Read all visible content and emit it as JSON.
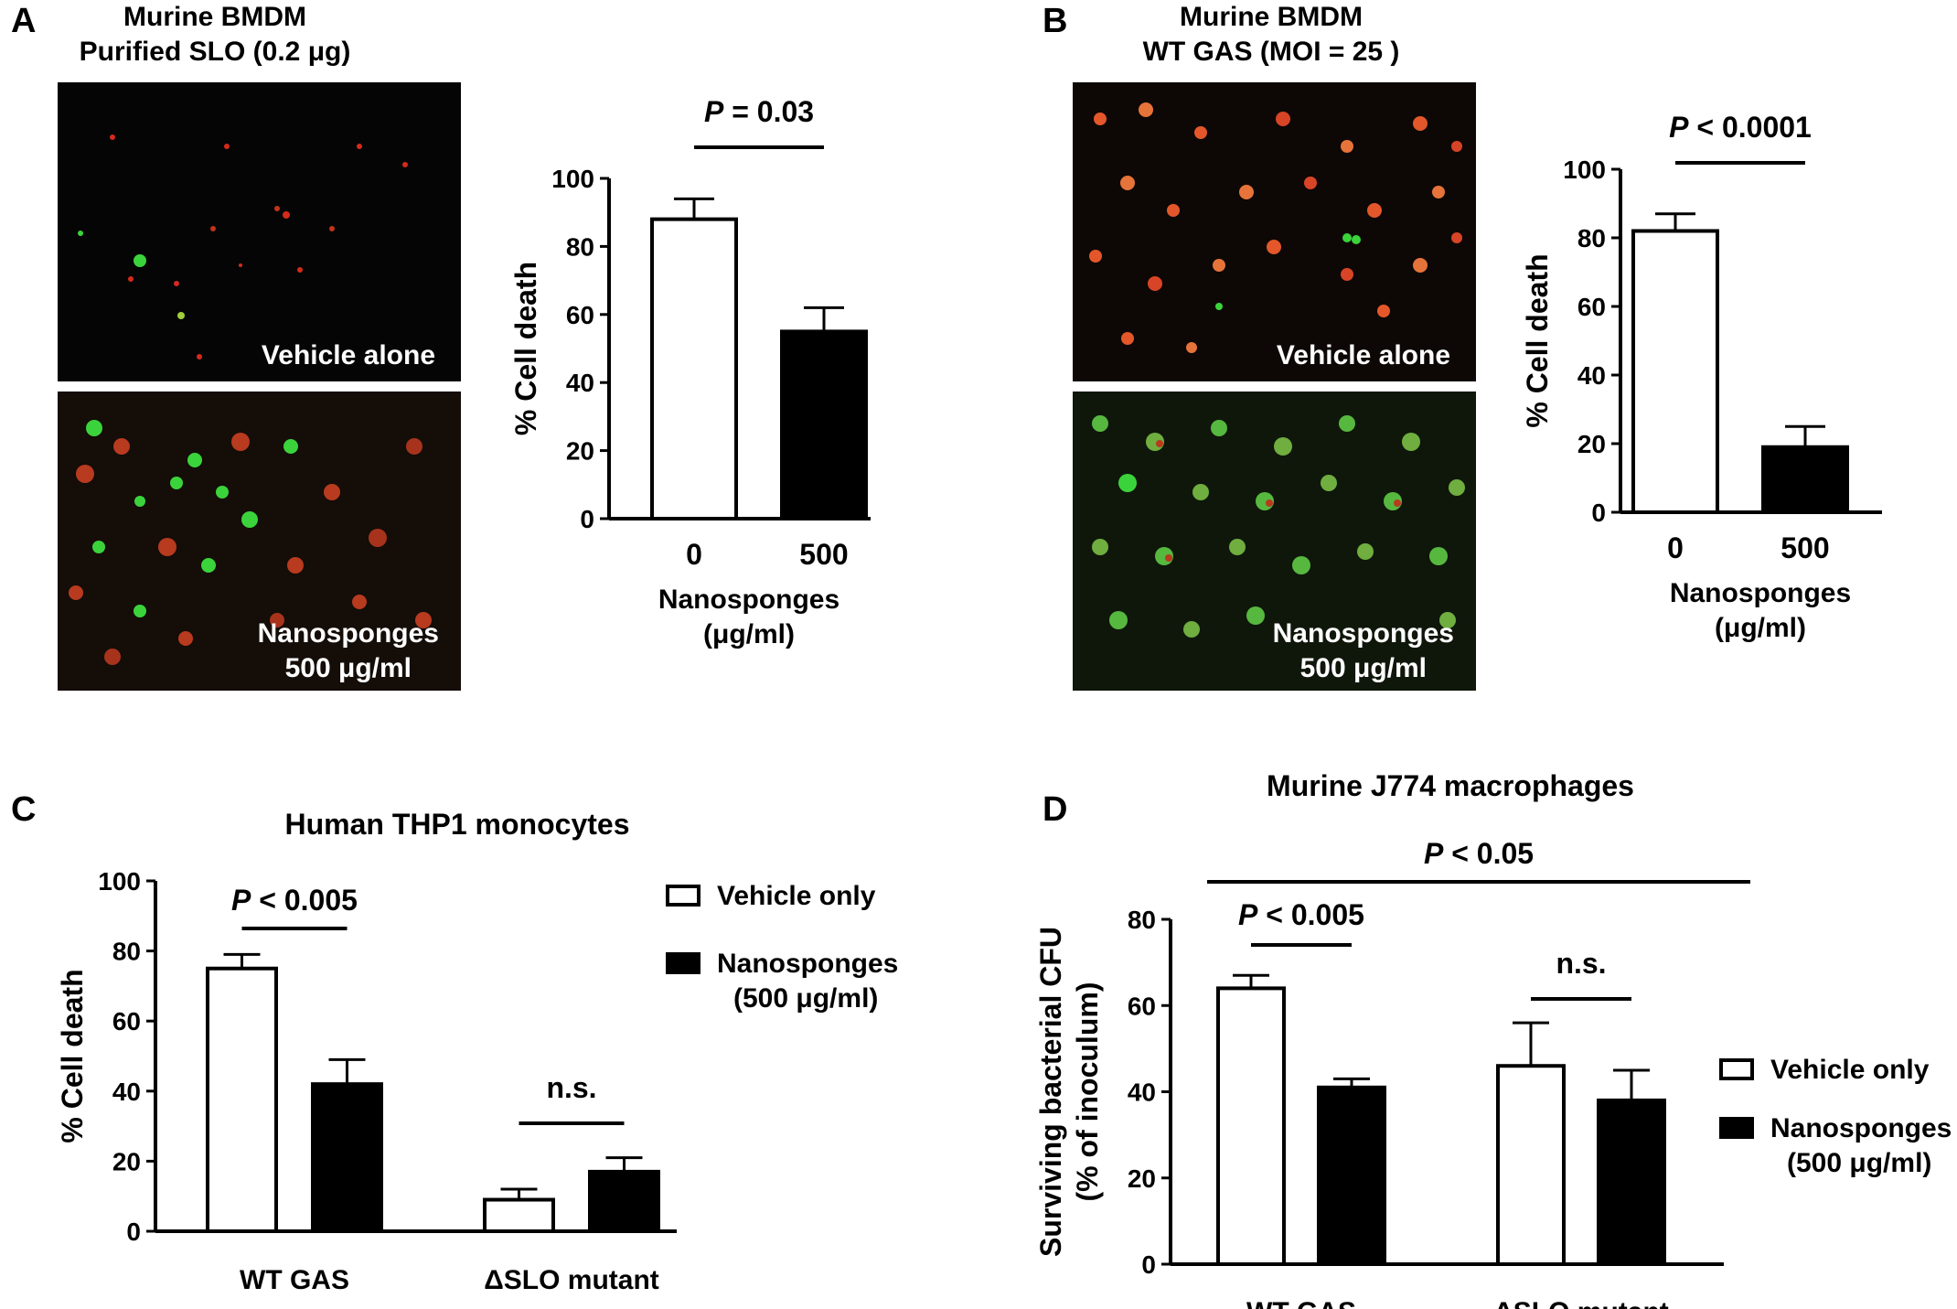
{
  "panels": {
    "A": {
      "letter": "A",
      "title_line1": "Murine BMDM",
      "title_line2": "Purified SLO (0.2 μg)",
      "image_top_label": "Vehicle alone",
      "image_bottom_label_line1": "Nanosponges",
      "image_bottom_label_line2": "500 μg/ml"
    },
    "B": {
      "letter": "B",
      "title_line1": "Murine BMDM",
      "title_line2": "WT GAS (MOI = 25 )",
      "image_top_label": "Vehicle alone",
      "image_bottom_label_line1": "Nanosponges",
      "image_bottom_label_line2": "500 μg/ml"
    },
    "C": {
      "letter": "C"
    },
    "D": {
      "letter": "D"
    }
  },
  "colors": {
    "open_bar": "#ffffff",
    "filled_bar": "#000000",
    "micro_bg_A_top": "#050505",
    "micro_bg_A_bottom": "#140d08",
    "micro_bg_B_top": "#0d0805",
    "micro_bg_B_bottom": "#0f170b"
  },
  "chart_data": [
    {
      "id": "A",
      "type": "bar",
      "title": "",
      "categories": [
        "0",
        "500"
      ],
      "values": [
        88,
        55
      ],
      "errors": [
        6,
        7
      ],
      "bar_styles": [
        "open",
        "filled"
      ],
      "ylabel": "% Cell death",
      "xlabel_line1": "Nanosponges",
      "xlabel_line2": "(μg/ml)",
      "ylim": [
        0,
        100
      ],
      "yticks": [
        "0",
        "20",
        "40",
        "60",
        "80",
        "100"
      ],
      "significance": [
        {
          "between": [
            0,
            1
          ],
          "label_italic": "P",
          "label_rest": " = 0.03"
        }
      ]
    },
    {
      "id": "B",
      "type": "bar",
      "title": "",
      "categories": [
        "0",
        "500"
      ],
      "values": [
        82,
        19
      ],
      "errors": [
        5,
        6
      ],
      "bar_styles": [
        "open",
        "filled"
      ],
      "ylabel": "% Cell death",
      "xlabel_line1": "Nanosponges",
      "xlabel_line2": "(μg/ml)",
      "ylim": [
        0,
        100
      ],
      "yticks": [
        "0",
        "20",
        "40",
        "60",
        "80",
        "100"
      ],
      "significance": [
        {
          "between": [
            0,
            1
          ],
          "label_italic": "P",
          "label_rest": " < 0.0001"
        }
      ]
    },
    {
      "id": "C",
      "type": "bar",
      "title": "Human THP1 monocytes",
      "categories": [
        "WT GAS",
        "ΔSLO mutant"
      ],
      "series": [
        {
          "name": "Vehicle only",
          "style": "open",
          "values": [
            75,
            9
          ],
          "errors": [
            4,
            3
          ]
        },
        {
          "name": "Nanosponges (500 μg/ml)",
          "style": "filled",
          "values": [
            42,
            17
          ],
          "errors": [
            7,
            4
          ]
        }
      ],
      "legend_entries": [
        {
          "line1": "Vehicle only",
          "line2": "",
          "style": "open"
        },
        {
          "line1": "Nanosponges",
          "line2": "(500 μg/ml)",
          "style": "filled"
        }
      ],
      "ylabel": "% Cell death",
      "ylabel_line2": "",
      "ylim": [
        0,
        100
      ],
      "yticks": [
        "0",
        "20",
        "40",
        "60",
        "80",
        "100"
      ],
      "legend_position": "top-right",
      "significance": [
        {
          "bars": [
            [
              0,
              0
            ],
            [
              0,
              1
            ]
          ],
          "label_italic": "P",
          "label_rest": " < 0.005"
        },
        {
          "bars": [
            [
              1,
              0
            ],
            [
              1,
              1
            ]
          ],
          "label_italic": "",
          "label_rest": "n.s."
        }
      ]
    },
    {
      "id": "D",
      "type": "bar",
      "title": "Murine J774 macrophages",
      "categories": [
        "WT GAS",
        "ΔSLO mutant"
      ],
      "series": [
        {
          "name": "Vehicle only",
          "style": "open",
          "values": [
            64,
            46
          ],
          "errors": [
            3,
            10
          ]
        },
        {
          "name": "Nanosponges (500 μg/ml)",
          "style": "filled",
          "values": [
            41,
            38
          ],
          "errors": [
            2,
            7
          ]
        }
      ],
      "legend_entries": [
        {
          "line1": "Vehicle only",
          "line2": "",
          "style": "open"
        },
        {
          "line1": "Nanosponges",
          "line2": "(500 μg/ml)",
          "style": "filled"
        }
      ],
      "ylabel": "Surviving bacterial CFU",
      "ylabel_line2": "(% of inoculum)",
      "ylim": [
        0,
        80
      ],
      "yticks": [
        "0",
        "20",
        "40",
        "60",
        "80"
      ],
      "legend_position": "right",
      "significance": [
        {
          "bars": [
            [
              0,
              0
            ],
            [
              0,
              1
            ]
          ],
          "label_italic": "P",
          "label_rest": " < 0.005"
        },
        {
          "bars": [
            [
              1,
              0
            ],
            [
              1,
              1
            ]
          ],
          "label_italic": "",
          "label_rest": "n.s."
        },
        {
          "bars": [
            [
              0,
              0
            ],
            [
              1,
              0
            ]
          ],
          "label_italic": "P",
          "label_rest": " < 0.05"
        }
      ]
    }
  ]
}
